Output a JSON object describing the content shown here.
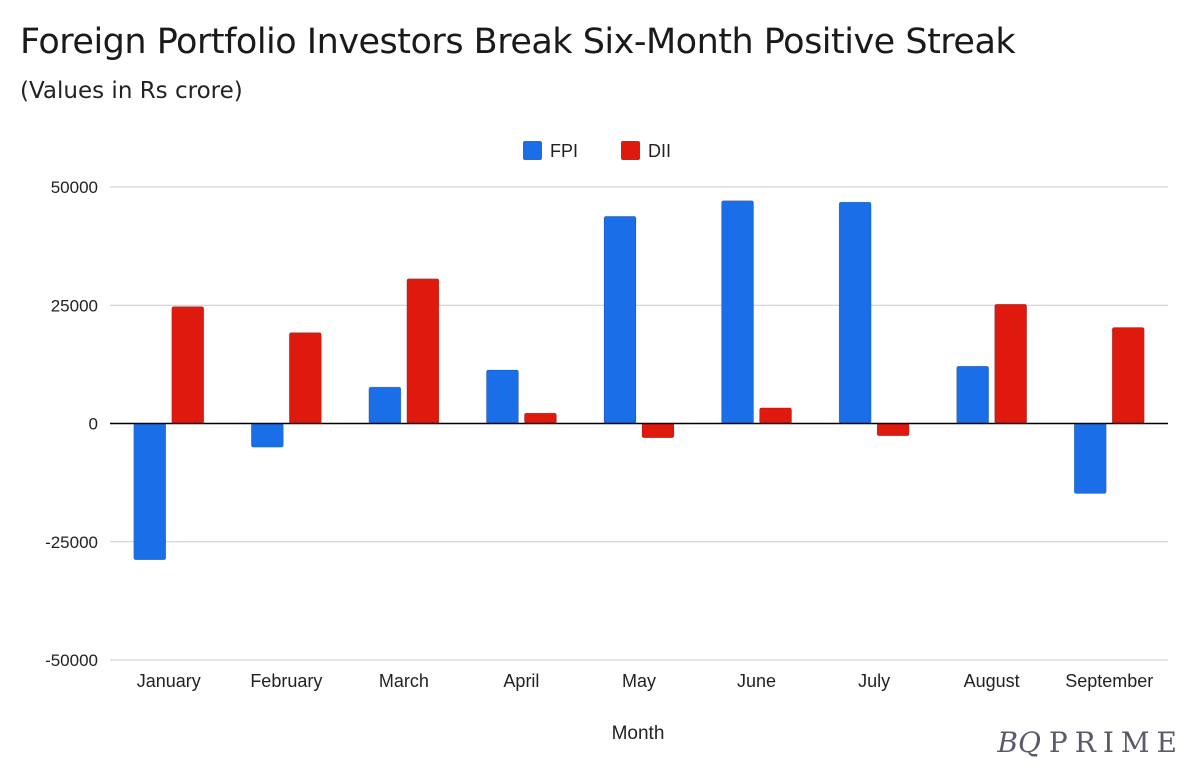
{
  "header": {
    "title": "Foreign Portfolio Investors Break Six-Month Positive Streak",
    "subtitle": "(Values in Rs crore)"
  },
  "brand": {
    "mark": "BQ",
    "word": "PRIME"
  },
  "colors": {
    "fpi": "#1a6fe8",
    "dii": "#e0190f",
    "grid": "#cccccc",
    "axis": "#000000"
  },
  "chart_data": {
    "type": "bar",
    "title": "Foreign Portfolio Investors Break Six-Month Positive Streak",
    "subtitle": "(Values in Rs crore)",
    "xlabel": "Month",
    "ylabel": "",
    "categories": [
      "January",
      "February",
      "March",
      "April",
      "May",
      "June",
      "July",
      "August",
      "September"
    ],
    "series": [
      {
        "name": "FPI",
        "color": "#1a6fe8",
        "values": [
          -28800,
          -5000,
          7700,
          11300,
          43800,
          47100,
          46800,
          12100,
          -14800
        ]
      },
      {
        "name": "DII",
        "color": "#e0190f",
        "values": [
          24700,
          19200,
          30600,
          2200,
          -3000,
          3300,
          -2600,
          25200,
          20300
        ]
      }
    ],
    "yticks": [
      50000,
      25000,
      0,
      -25000,
      -50000
    ],
    "ytick_labels": [
      "50000",
      "25000",
      "0",
      "-25000",
      "-50000"
    ],
    "ylim": [
      -50000,
      50000
    ],
    "grid": true,
    "legend": "top-center"
  }
}
